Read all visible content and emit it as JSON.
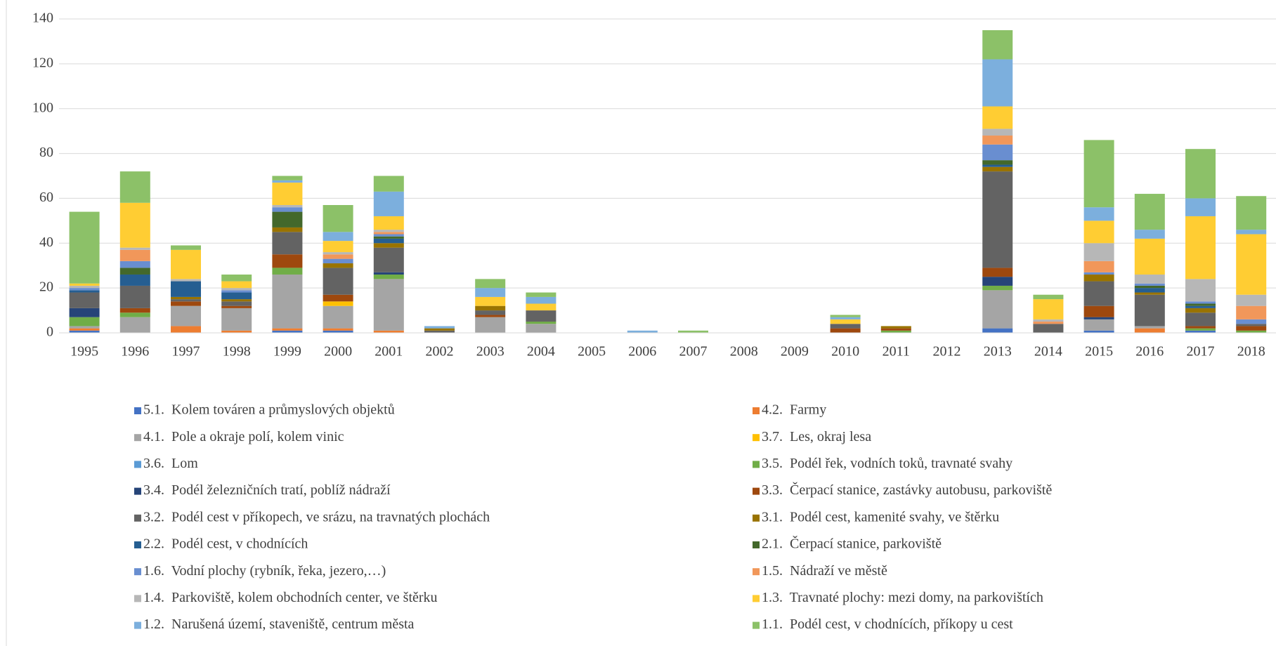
{
  "chart_data": {
    "type": "stacked_bar",
    "categories": [
      "1995",
      "1996",
      "1997",
      "1998",
      "1999",
      "2000",
      "2001",
      "2002",
      "2003",
      "2004",
      "2005",
      "2006",
      "2007",
      "2008",
      "2009",
      "2010",
      "2011",
      "2012",
      "2013",
      "2014",
      "2015",
      "2016",
      "2017",
      "2018"
    ],
    "ylim": [
      0,
      140
    ],
    "yticks": [
      0,
      20,
      40,
      60,
      80,
      100,
      120,
      140
    ],
    "grid": true,
    "series": [
      {
        "name": "5.1.  Kolem továren a průmyslových objektů",
        "color": "#4472c4",
        "values": [
          1,
          0,
          0,
          0,
          1,
          1,
          0,
          0,
          0,
          0,
          0,
          0,
          0,
          0,
          0,
          0,
          0,
          0,
          2,
          0,
          1,
          0,
          1,
          0
        ]
      },
      {
        "name": "4.2.  Farmy",
        "color": "#ed7d31",
        "values": [
          1,
          0,
          3,
          1,
          1,
          1,
          1,
          0,
          0,
          0,
          0,
          0,
          0,
          0,
          0,
          0,
          0,
          0,
          0,
          0,
          0,
          2,
          0,
          0
        ]
      },
      {
        "name": "4.1.  Pole a okraje polí, kolem vinic",
        "color": "#a5a5a5",
        "values": [
          1,
          7,
          9,
          10,
          24,
          10,
          23,
          0,
          7,
          4,
          0,
          0,
          0,
          0,
          0,
          0,
          0,
          0,
          17,
          0,
          5,
          1,
          0,
          0
        ]
      },
      {
        "name": "3.7.  Les, okraj lesa",
        "color": "#ffc000",
        "values": [
          0,
          0,
          0,
          0,
          0,
          2,
          0,
          0,
          0,
          0,
          0,
          0,
          0,
          0,
          0,
          0,
          0,
          0,
          0,
          0,
          0,
          0,
          0,
          0
        ]
      },
      {
        "name": "3.6.  Lom",
        "color": "#5b9bd5",
        "values": [
          0,
          0,
          0,
          0,
          0,
          0,
          0,
          0,
          0,
          0,
          0,
          0,
          0,
          0,
          0,
          0,
          0,
          0,
          0,
          0,
          0,
          0,
          0,
          0
        ]
      },
      {
        "name": "3.5.  Podél řek, vodních toků, travnaté svahy",
        "color": "#70ad47",
        "values": [
          4,
          2,
          0,
          0,
          3,
          0,
          2,
          0,
          0,
          1,
          0,
          0,
          0,
          0,
          0,
          0,
          1,
          0,
          2,
          0,
          0,
          0,
          1,
          1
        ]
      },
      {
        "name": "3.4.  Podél železničních tratí, poblíž nádraží",
        "color": "#264478",
        "values": [
          4,
          0,
          0,
          0,
          0,
          0,
          1,
          0,
          0,
          0,
          0,
          0,
          0,
          0,
          0,
          0,
          0,
          0,
          4,
          0,
          1,
          0,
          0,
          0
        ]
      },
      {
        "name": "3.3.  Čerpací stanice, zastávky autobusu, parkoviště",
        "color": "#9e480e",
        "values": [
          0,
          2,
          2,
          1,
          6,
          3,
          0,
          0,
          1,
          0,
          0,
          0,
          0,
          0,
          0,
          2,
          1,
          0,
          4,
          0,
          5,
          0,
          1,
          2
        ]
      },
      {
        "name": "3.2.  Podél cest v příkopech, ve srázu, na travnatých plochách",
        "color": "#636363",
        "values": [
          7,
          10,
          1,
          2,
          10,
          12,
          11,
          1,
          2,
          5,
          0,
          0,
          0,
          0,
          0,
          2,
          0,
          0,
          43,
          4,
          11,
          14,
          6,
          1
        ]
      },
      {
        "name": "3.1.  Podél cest, kamenité svahy, ve štěrku",
        "color": "#997300",
        "values": [
          0,
          0,
          1,
          1,
          2,
          2,
          2,
          1,
          2,
          0,
          0,
          0,
          0,
          0,
          0,
          0,
          1,
          0,
          2,
          0,
          3,
          1,
          2,
          0
        ]
      },
      {
        "name": "2.2.  Podél cest, v chodnících",
        "color": "#255e91",
        "values": [
          1,
          5,
          7,
          3,
          0,
          0,
          2,
          0,
          0,
          0,
          0,
          0,
          0,
          0,
          0,
          0,
          0,
          0,
          1,
          0,
          0,
          2,
          1,
          0
        ]
      },
      {
        "name": "2.1.  Čerpací stanice, parkoviště",
        "color": "#43682b",
        "values": [
          0,
          3,
          0,
          0,
          7,
          0,
          1,
          0,
          0,
          0,
          0,
          0,
          0,
          0,
          0,
          0,
          0,
          0,
          2,
          0,
          0,
          1,
          1,
          0
        ]
      },
      {
        "name": "1.6.  Vodní plochy (rybník, řeka, jezero,…)",
        "color": "#698ed0",
        "values": [
          1,
          3,
          0,
          1,
          2,
          2,
          1,
          0,
          0,
          0,
          0,
          0,
          0,
          0,
          0,
          0,
          0,
          0,
          7,
          0,
          1,
          1,
          1,
          2
        ]
      },
      {
        "name": "1.5.  Nádraží ve městě",
        "color": "#f1975a",
        "values": [
          0,
          5,
          0,
          0,
          0,
          2,
          1,
          0,
          0,
          0,
          0,
          0,
          0,
          0,
          0,
          0,
          0,
          0,
          4,
          1,
          5,
          0,
          0,
          6
        ]
      },
      {
        "name": "1.4.  Parkoviště, kolem obchodních center, ve štěrku",
        "color": "#b7b7b7",
        "values": [
          1,
          1,
          1,
          1,
          1,
          1,
          1,
          0,
          0,
          0,
          0,
          0,
          0,
          0,
          0,
          0,
          0,
          0,
          3,
          1,
          8,
          4,
          10,
          5
        ]
      },
      {
        "name": "1.3.  Travnaté plochy: mezi domy, na parkovištích",
        "color": "#ffcd33",
        "values": [
          1,
          20,
          13,
          3,
          10,
          5,
          6,
          0,
          4,
          3,
          0,
          0,
          0,
          0,
          0,
          2,
          0,
          0,
          10,
          9,
          10,
          16,
          28,
          27
        ]
      },
      {
        "name": "1.2.  Narušená území, staveniště, centrum města",
        "color": "#7cafdd",
        "values": [
          0,
          0,
          0,
          0,
          1,
          4,
          11,
          1,
          4,
          3,
          0,
          1,
          0,
          0,
          0,
          1,
          0,
          0,
          21,
          0,
          6,
          4,
          8,
          2
        ]
      },
      {
        "name": "1.1.  Podél cest, v chodnících, příkopy u cest",
        "color": "#8cc168",
        "values": [
          32,
          14,
          2,
          3,
          2,
          12,
          7,
          0,
          4,
          2,
          0,
          0,
          1,
          0,
          0,
          1,
          0,
          0,
          13,
          2,
          30,
          16,
          22,
          15
        ]
      }
    ]
  }
}
